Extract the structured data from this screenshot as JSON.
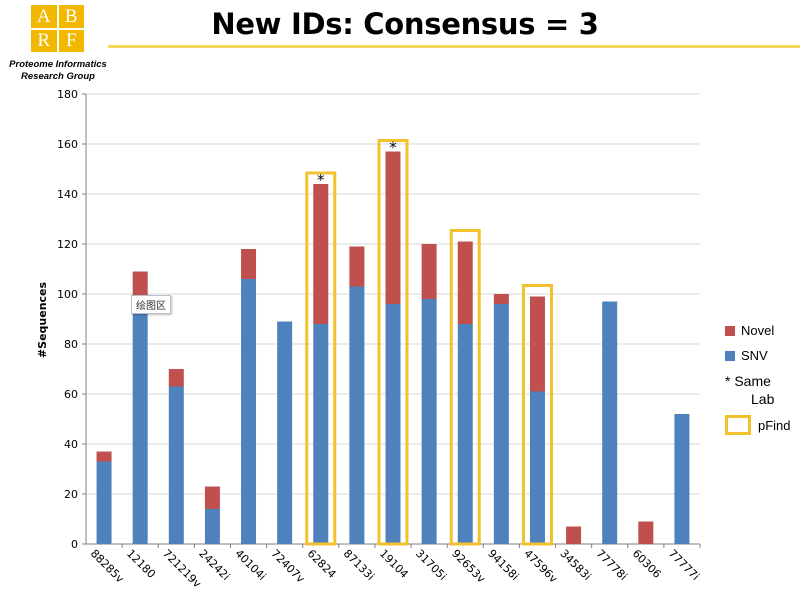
{
  "logo": {
    "letters": [
      "A",
      "B",
      "R",
      "F"
    ]
  },
  "org_name": "Proteome Informatics Research Group",
  "title": "New IDs: Consensus = 3",
  "tooltip": "绘图区",
  "colors": {
    "novel": "#c0504d",
    "snv": "#4f81bd",
    "highlight": "#f2c22e",
    "title_rule": "#f5d95c",
    "gridline": "#d9d9d9"
  },
  "legend": {
    "novel": "Novel",
    "snv": "SNV",
    "same_lab_line1": "* Same",
    "same_lab_line2": "Lab",
    "pfind": "pFind"
  },
  "chart_data": {
    "type": "bar",
    "stacked": true,
    "categories": [
      "88285v",
      "12180",
      "721219v",
      "24242i",
      "40104i",
      "72407v",
      "62824",
      "87133i",
      "19104",
      "31705i",
      "92653v",
      "94158i",
      "47596v",
      "34583i",
      "77778i",
      "60306",
      "77777i"
    ],
    "series": [
      {
        "name": "SNV",
        "values": [
          33,
          92,
          63,
          14,
          106,
          89,
          88,
          103,
          96,
          98,
          88,
          96,
          61,
          0,
          97,
          0,
          52
        ]
      },
      {
        "name": "Novel",
        "values": [
          4,
          17,
          7,
          9,
          12,
          0,
          56,
          16,
          61,
          22,
          33,
          4,
          38,
          7,
          0,
          9,
          0
        ]
      }
    ],
    "ylabel": "#Sequences",
    "xlabel": "",
    "ylim": [
      0,
      180
    ],
    "yticks": [
      0,
      20,
      40,
      60,
      80,
      100,
      120,
      140,
      160,
      180
    ],
    "grid": true,
    "legend_position": "right",
    "pfind_highlight": [
      "62824",
      "19104",
      "92653v",
      "47596v"
    ],
    "same_lab_marker": [
      "62824",
      "19104"
    ],
    "marker_symbol": "*"
  }
}
